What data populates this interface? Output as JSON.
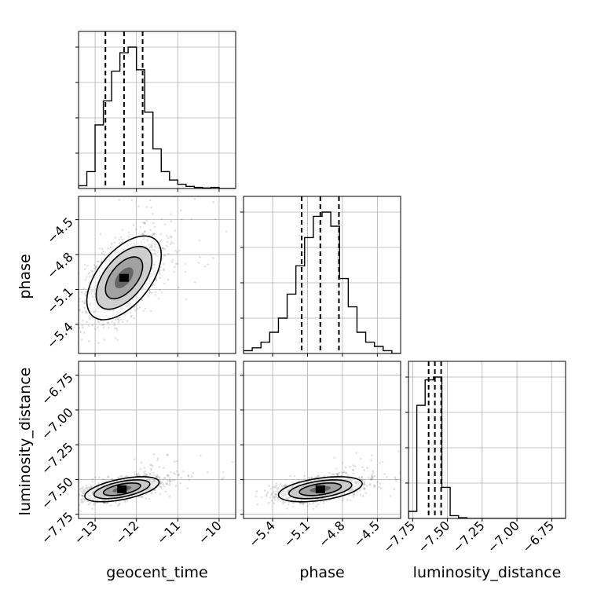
{
  "chart_data": {
    "type": "corner",
    "parameters": [
      "geocent_time",
      "phase",
      "luminosity_distance"
    ],
    "xlabels": [
      "geocent_time",
      "phase",
      "luminosity_distance"
    ],
    "ylabels": [
      "",
      "phase",
      "luminosity_distance"
    ],
    "ranges": {
      "geocent_time": [
        -13.4,
        -9.6
      ],
      "phase": [
        -5.65,
        -4.3
      ],
      "luminosity_distance": [
        -7.78,
        -6.65
      ]
    },
    "ticks": {
      "geocent_time": [
        {
          "v": -13,
          "label": "−13"
        },
        {
          "v": -12,
          "label": "−12"
        },
        {
          "v": -11,
          "label": "−11"
        },
        {
          "v": -10,
          "label": "−10"
        }
      ],
      "phase": [
        {
          "v": -5.4,
          "label": "−5.4"
        },
        {
          "v": -5.1,
          "label": "−5.1"
        },
        {
          "v": -4.8,
          "label": "−4.8"
        },
        {
          "v": -4.5,
          "label": "−4.5"
        }
      ],
      "luminosity_distance": [
        {
          "v": -7.75,
          "label": "−7.75"
        },
        {
          "v": -7.5,
          "label": "−7.50"
        },
        {
          "v": -7.25,
          "label": "−7.25"
        },
        {
          "v": -7.0,
          "label": "−7.00"
        },
        {
          "v": -6.75,
          "label": "−6.75"
        }
      ]
    },
    "grid": true,
    "histograms": {
      "geocent_time": {
        "edges": [
          -13.4,
          -13.2,
          -13.0,
          -12.8,
          -12.6,
          -12.4,
          -12.2,
          -12.0,
          -11.8,
          -11.6,
          -11.4,
          -11.2,
          -11.0,
          -10.8,
          -10.6,
          -10.4,
          -10.2,
          -10.0,
          -9.8,
          -9.6
        ],
        "counts": [
          0.02,
          0.12,
          0.45,
          0.62,
          0.83,
          0.96,
          1.0,
          0.84,
          0.54,
          0.28,
          0.12,
          0.06,
          0.03,
          0.015,
          0.008,
          0.004,
          0.008,
          0.0,
          0.0
        ],
        "quantiles": [
          -12.75,
          -12.3,
          -11.85
        ]
      },
      "phase": {
        "edges": [
          -5.65,
          -5.575,
          -5.5,
          -5.425,
          -5.35,
          -5.275,
          -5.2,
          -5.125,
          -5.05,
          -4.975,
          -4.9,
          -4.825,
          -4.75,
          -4.675,
          -4.6,
          -4.525,
          -4.45,
          -4.375,
          -4.3
        ],
        "counts": [
          0.02,
          0.04,
          0.08,
          0.15,
          0.25,
          0.42,
          0.62,
          0.82,
          0.97,
          1.0,
          0.9,
          0.53,
          0.33,
          0.15,
          0.08,
          0.05,
          0.02,
          0.0
        ],
        "quantiles": [
          -5.15,
          -4.99,
          -4.83
        ]
      },
      "luminosity_distance": {
        "edges": [
          -7.78,
          -7.72,
          -7.66,
          -7.6,
          -7.54,
          -7.48,
          -7.42,
          -7.36,
          -7.3,
          -7.24,
          -7.18,
          -7.12,
          -7.06,
          -7.0,
          -6.94,
          -6.88,
          -6.82,
          -6.76,
          -6.7,
          -6.65
        ],
        "counts": [
          0.05,
          0.8,
          0.98,
          1.0,
          0.22,
          0.02,
          0.005,
          0.0,
          0.0,
          0.0,
          0.0,
          0.0,
          0.0,
          0.0,
          0.0,
          0.0,
          0.0,
          0.0,
          0.0
        ],
        "quantiles": [
          -7.635,
          -7.59,
          -7.545
        ]
      }
    },
    "pairs": [
      {
        "x": "geocent_time",
        "y": "phase",
        "mean": [
          -12.3,
          -5.0
        ],
        "sd": [
          0.45,
          0.18
        ],
        "rho": 0.55
      },
      {
        "x": "geocent_time",
        "y": "luminosity_distance",
        "mean": [
          -12.35,
          -7.57
        ],
        "sd": [
          0.45,
          0.045
        ],
        "rho": 0.55
      },
      {
        "x": "phase",
        "y": "luminosity_distance",
        "mean": [
          -4.99,
          -7.57
        ],
        "sd": [
          0.18,
          0.045
        ],
        "rho": 0.45
      }
    ],
    "contour_levels_sigma": [
      0.5,
      1.0,
      1.5,
      2.0
    ]
  }
}
